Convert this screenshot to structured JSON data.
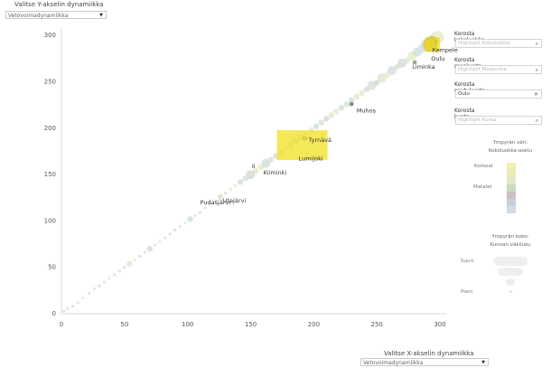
{
  "y_control": {
    "label": "Valitse Y-akselin dynamiikka",
    "selected": "Vetovoimadynamiikka"
  },
  "x_control": {
    "label": "Valitse X-akselin dynamiikka",
    "selected": "Vetovoimadynamiikka"
  },
  "filters": [
    {
      "title": "Korosta kokoluokka",
      "placeholder": "Highlight Kokoluokka",
      "value": "",
      "icon": "search-icon"
    },
    {
      "title": "Korosta maakunta",
      "placeholder": "Highlight Maakunta",
      "value": "",
      "icon": "search-icon"
    },
    {
      "title": "Korosta seutukunta",
      "placeholder": "",
      "value": "Oulu",
      "icon": "close-icon"
    },
    {
      "title": "Korosta kunta",
      "placeholder": "Highlight Kunta",
      "value": "",
      "icon": "search-icon"
    }
  ],
  "color_legend": {
    "title_line1": "Ympyrän väri:",
    "title_line2": "Kokoluokka-asetu",
    "high_label": "Korkeat",
    "low_label": "Matalat",
    "colors": [
      "#f3eeaf",
      "#e9ecb8",
      "#dfe8c5",
      "#c9d9bf",
      "#ccbfc6",
      "#c6cfdb",
      "#d2dbe4"
    ]
  },
  "size_legend": {
    "title_line1": "Ympyrän koko:",
    "title_line2": "Kunnan väkiluku",
    "large_label": "Suuri",
    "small_label": "Pieni"
  },
  "chart_data": {
    "type": "scatter",
    "xlim": [
      0,
      305
    ],
    "ylim": [
      0,
      305
    ],
    "x_ticks": [
      0,
      50,
      100,
      150,
      200,
      250,
      300
    ],
    "y_ticks": [
      0,
      50,
      100,
      150,
      200,
      250,
      300
    ],
    "grid": false,
    "xlabel": "",
    "ylabel": "",
    "highlight_color": "#f0e020",
    "labels": [
      {
        "text": "Kempele",
        "x": 294,
        "y": 282
      },
      {
        "text": "Oulu",
        "x": 293,
        "y": 273
      },
      {
        "text": "Liminka",
        "x": 278,
        "y": 264
      },
      {
        "text": "Muhos",
        "x": 234,
        "y": 217
      },
      {
        "text": "Tyrnävä",
        "x": 196,
        "y": 185
      },
      {
        "text": "Lumijoki",
        "x": 188,
        "y": 165
      },
      {
        "text": "Ii",
        "x": 151,
        "y": 157
      },
      {
        "text": "Utajärvi",
        "x": 128,
        "y": 120
      },
      {
        "text": "Kiiminki",
        "x": 160,
        "y": 150
      },
      {
        "text": "Pudasjärvi",
        "x": 110,
        "y": 118
      }
    ],
    "points": [
      [
        2,
        3,
        1
      ],
      [
        5,
        6,
        1
      ],
      [
        9,
        8,
        1
      ],
      [
        13,
        12,
        1
      ],
      [
        17,
        17,
        1
      ],
      [
        22,
        22,
        1
      ],
      [
        26,
        27,
        1
      ],
      [
        30,
        30,
        1
      ],
      [
        34,
        34,
        1
      ],
      [
        38,
        38,
        1
      ],
      [
        42,
        42,
        1
      ],
      [
        46,
        46,
        1
      ],
      [
        50,
        50,
        1
      ],
      [
        54,
        54,
        2
      ],
      [
        58,
        58,
        1
      ],
      [
        62,
        62,
        1
      ],
      [
        66,
        66,
        1
      ],
      [
        70,
        70,
        2
      ],
      [
        74,
        74,
        1
      ],
      [
        78,
        78,
        1
      ],
      [
        82,
        82,
        1
      ],
      [
        86,
        86,
        1
      ],
      [
        90,
        90,
        1
      ],
      [
        94,
        94,
        1
      ],
      [
        98,
        98,
        1
      ],
      [
        102,
        102,
        2
      ],
      [
        106,
        106,
        1
      ],
      [
        110,
        109,
        1
      ],
      [
        114,
        114,
        1
      ],
      [
        118,
        118,
        1
      ],
      [
        122,
        122,
        1
      ],
      [
        126,
        126,
        2
      ],
      [
        130,
        130,
        1
      ],
      [
        134,
        134,
        1
      ],
      [
        138,
        138,
        1
      ],
      [
        142,
        142,
        2
      ],
      [
        146,
        146,
        2
      ],
      [
        150,
        150,
        3
      ],
      [
        154,
        154,
        2
      ],
      [
        158,
        158,
        2
      ],
      [
        162,
        162,
        3
      ],
      [
        166,
        166,
        2
      ],
      [
        170,
        170,
        2
      ],
      [
        174,
        174,
        2
      ],
      [
        178,
        178,
        1
      ],
      [
        182,
        182,
        2
      ],
      [
        186,
        186,
        2
      ],
      [
        190,
        190,
        2
      ],
      [
        194,
        194,
        1
      ],
      [
        198,
        198,
        2
      ],
      [
        202,
        202,
        2
      ],
      [
        206,
        206,
        2
      ],
      [
        210,
        210,
        2
      ],
      [
        214,
        214,
        2
      ],
      [
        218,
        218,
        2
      ],
      [
        222,
        222,
        2
      ],
      [
        226,
        226,
        2
      ],
      [
        230,
        230,
        2
      ],
      [
        234,
        234,
        2
      ],
      [
        238,
        238,
        2
      ],
      [
        242,
        242,
        2
      ],
      [
        246,
        246,
        3
      ],
      [
        250,
        249,
        2
      ],
      [
        254,
        254,
        3
      ],
      [
        258,
        257,
        2
      ],
      [
        262,
        262,
        3
      ],
      [
        266,
        266,
        2
      ],
      [
        270,
        270,
        3
      ],
      [
        274,
        273,
        2
      ],
      [
        278,
        278,
        3
      ],
      [
        282,
        282,
        3
      ],
      [
        286,
        286,
        3
      ],
      [
        290,
        290,
        4
      ],
      [
        294,
        294,
        4
      ],
      [
        298,
        298,
        4
      ]
    ],
    "highlighted": [
      {
        "name": "Kempele",
        "x": 294,
        "y": 294,
        "size": 4
      },
      {
        "name": "Oulu",
        "x": 292,
        "y": 290,
        "size": 5
      },
      {
        "name": "Liminka",
        "x": 280,
        "y": 271,
        "size": 2
      },
      {
        "name": "Muhos",
        "x": 230,
        "y": 226,
        "size": 2
      },
      {
        "name": "Tyrnävä",
        "x": 193,
        "y": 189,
        "size": 2
      }
    ]
  }
}
